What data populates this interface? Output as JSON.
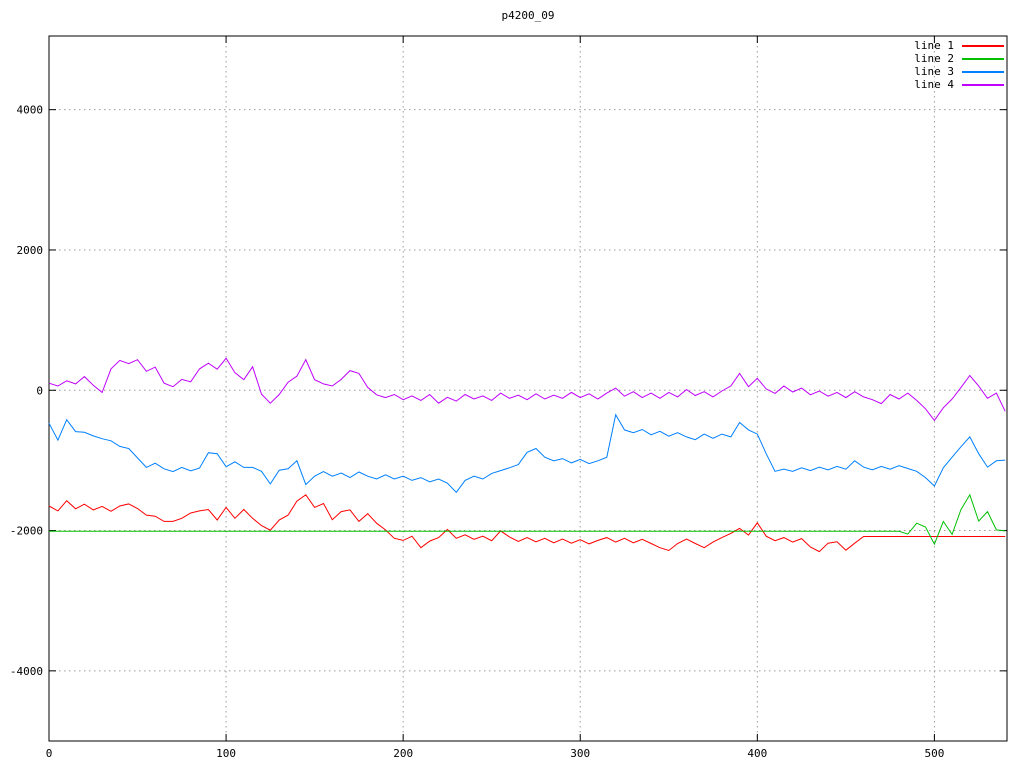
{
  "window": {
    "background": "#ffffff"
  },
  "chart_data": {
    "type": "line",
    "title": "p4200_09",
    "xlabel": "",
    "ylabel": "",
    "xlim": [
      0,
      541
    ],
    "ylim": [
      -5000,
      5050
    ],
    "xticks": [
      0,
      100,
      200,
      300,
      400,
      500
    ],
    "yticks": [
      -4000,
      -2000,
      0,
      2000,
      4000
    ],
    "grid": "dotted",
    "grid_color": "#9b9b9b",
    "border_color": "#000000",
    "legend_position": "top-right",
    "x_step": 5,
    "series": [
      {
        "name": "line 1",
        "color": "#ff0000",
        "values": [
          -1650,
          -1720,
          -1575,
          -1690,
          -1625,
          -1705,
          -1655,
          -1725,
          -1650,
          -1620,
          -1685,
          -1780,
          -1795,
          -1870,
          -1870,
          -1825,
          -1750,
          -1720,
          -1700,
          -1850,
          -1670,
          -1825,
          -1700,
          -1825,
          -1930,
          -1995,
          -1850,
          -1780,
          -1580,
          -1490,
          -1670,
          -1615,
          -1845,
          -1730,
          -1705,
          -1870,
          -1760,
          -1895,
          -1990,
          -2110,
          -2140,
          -2080,
          -2245,
          -2150,
          -2100,
          -1985,
          -2110,
          -2060,
          -2125,
          -2080,
          -2145,
          -2005,
          -2090,
          -2155,
          -2100,
          -2160,
          -2110,
          -2175,
          -2120,
          -2180,
          -2130,
          -2190,
          -2140,
          -2100,
          -2165,
          -2110,
          -2175,
          -2125,
          -2185,
          -2245,
          -2285,
          -2185,
          -2120,
          -2185,
          -2245,
          -2165,
          -2100,
          -2040,
          -1970,
          -2065,
          -1890,
          -2080,
          -2145,
          -2100,
          -2165,
          -2115,
          -2235,
          -2300,
          -2180,
          -2160,
          -2280,
          -2180,
          -2085,
          -2085,
          -2085,
          -2085,
          -2085,
          -2085,
          -2085,
          -2085,
          -2085,
          -2085,
          -2085,
          -2085,
          -2085,
          -2085,
          -2085,
          -2085,
          -2085
        ]
      },
      {
        "name": "line 2",
        "color": "#00c000",
        "values": [
          -2010,
          -2010,
          -2010,
          -2010,
          -2010,
          -2010,
          -2010,
          -2010,
          -2010,
          -2010,
          -2010,
          -2010,
          -2010,
          -2010,
          -2010,
          -2010,
          -2010,
          -2010,
          -2010,
          -2010,
          -2010,
          -2010,
          -2010,
          -2010,
          -2010,
          -2010,
          -2010,
          -2010,
          -2010,
          -2010,
          -2010,
          -2010,
          -2010,
          -2010,
          -2010,
          -2010,
          -2010,
          -2010,
          -2010,
          -2010,
          -2010,
          -2010,
          -2010,
          -2010,
          -2010,
          -2010,
          -2010,
          -2010,
          -2010,
          -2010,
          -2010,
          -2010,
          -2010,
          -2010,
          -2010,
          -2010,
          -2010,
          -2010,
          -2010,
          -2010,
          -2010,
          -2010,
          -2010,
          -2010,
          -2010,
          -2010,
          -2010,
          -2010,
          -2010,
          -2010,
          -2010,
          -2010,
          -2010,
          -2010,
          -2010,
          -2010,
          -2010,
          -2010,
          -2010,
          -2010,
          -2010,
          -2010,
          -2010,
          -2010,
          -2010,
          -2010,
          -2010,
          -2010,
          -2010,
          -2010,
          -2010,
          -2010,
          -2010,
          -2010,
          -2010,
          -2010,
          -2010,
          -2050,
          -1895,
          -1950,
          -2195,
          -1870,
          -2055,
          -1700,
          -1490,
          -1865,
          -1730,
          -1990,
          -2005
        ]
      },
      {
        "name": "line 3",
        "color": "#0080ff",
        "values": [
          -470,
          -710,
          -420,
          -590,
          -600,
          -650,
          -690,
          -720,
          -800,
          -830,
          -965,
          -1100,
          -1040,
          -1120,
          -1160,
          -1100,
          -1150,
          -1110,
          -890,
          -905,
          -1090,
          -1020,
          -1100,
          -1100,
          -1155,
          -1335,
          -1140,
          -1120,
          -1005,
          -1345,
          -1225,
          -1160,
          -1225,
          -1180,
          -1245,
          -1165,
          -1225,
          -1265,
          -1205,
          -1265,
          -1225,
          -1285,
          -1245,
          -1305,
          -1265,
          -1325,
          -1455,
          -1285,
          -1225,
          -1265,
          -1185,
          -1145,
          -1105,
          -1060,
          -885,
          -830,
          -955,
          -1005,
          -975,
          -1035,
          -985,
          -1045,
          -1005,
          -955,
          -350,
          -565,
          -605,
          -560,
          -635,
          -585,
          -655,
          -605,
          -665,
          -705,
          -625,
          -685,
          -625,
          -665,
          -460,
          -565,
          -625,
          -905,
          -1155,
          -1125,
          -1155,
          -1105,
          -1145,
          -1095,
          -1135,
          -1085,
          -1125,
          -1005,
          -1095,
          -1135,
          -1085,
          -1125,
          -1075,
          -1115,
          -1155,
          -1245,
          -1365,
          -1105,
          -955,
          -805,
          -665,
          -905,
          -1095,
          -1005,
          -995
        ]
      },
      {
        "name": "line 4",
        "color": "#c000ff",
        "values": [
          100,
          60,
          135,
          90,
          195,
          70,
          -30,
          305,
          425,
          380,
          435,
          270,
          330,
          100,
          50,
          155,
          120,
          305,
          385,
          300,
          455,
          250,
          150,
          335,
          -55,
          -185,
          -60,
          115,
          200,
          435,
          150,
          90,
          60,
          155,
          280,
          240,
          40,
          -65,
          -105,
          -60,
          -135,
          -80,
          -145,
          -60,
          -185,
          -100,
          -155,
          -60,
          -125,
          -80,
          -145,
          -40,
          -115,
          -70,
          -135,
          -50,
          -125,
          -70,
          -115,
          -30,
          -105,
          -50,
          -125,
          -40,
          30,
          -85,
          -20,
          -105,
          -40,
          -115,
          -30,
          -95,
          10,
          -75,
          -20,
          -95,
          -10,
          60,
          240,
          50,
          170,
          20,
          -45,
          60,
          -25,
          30,
          -65,
          -10,
          -85,
          -30,
          -105,
          -20,
          -95,
          -135,
          -190,
          -60,
          -125,
          -40,
          -145,
          -265,
          -430,
          -250,
          -125,
          40,
          210,
          60,
          -115,
          -40,
          -300
        ]
      }
    ]
  }
}
